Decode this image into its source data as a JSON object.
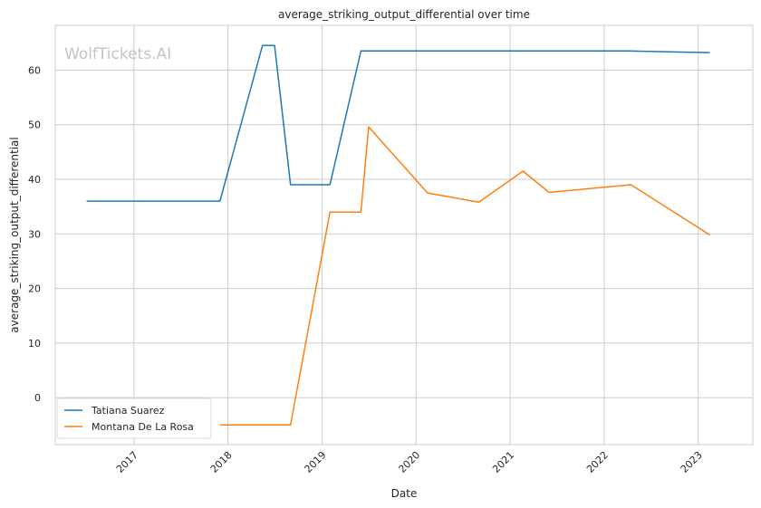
{
  "chart_data": {
    "type": "line",
    "title": "average_striking_output_differential over time",
    "xlabel": "Date",
    "ylabel": "average_striking_output_differential",
    "watermark": "WolfTickets.AI",
    "xlim": [
      "2016-03-01",
      "2023-08-01"
    ],
    "ylim": [
      -8.6,
      68.2
    ],
    "x_ticks": [
      "2017",
      "2018",
      "2019",
      "2020",
      "2021",
      "2022",
      "2023"
    ],
    "y_ticks": [
      0,
      10,
      20,
      30,
      40,
      50,
      60
    ],
    "grid": true,
    "legend_position": "lower-left",
    "series": [
      {
        "name": "Tatiana Suarez",
        "color": "#1f77b4",
        "points": [
          {
            "x": "2016-07-01",
            "y": 36
          },
          {
            "x": "2017-12-01",
            "y": 36
          },
          {
            "x": "2018-05-15",
            "y": 64.5
          },
          {
            "x": "2018-07-01",
            "y": 64.5
          },
          {
            "x": "2018-09-01",
            "y": 39
          },
          {
            "x": "2019-02-01",
            "y": 39
          },
          {
            "x": "2019-06-01",
            "y": 63.5
          },
          {
            "x": "2022-04-01",
            "y": 63.5
          },
          {
            "x": "2023-02-15",
            "y": 63.2
          }
        ]
      },
      {
        "name": "Montana De La Rosa",
        "color": "#ff7f0e",
        "points": [
          {
            "x": "2017-12-01",
            "y": -5
          },
          {
            "x": "2018-09-01",
            "y": -5
          },
          {
            "x": "2019-02-01",
            "y": 34
          },
          {
            "x": "2019-06-01",
            "y": 34
          },
          {
            "x": "2019-07-01",
            "y": 49.6
          },
          {
            "x": "2020-02-15",
            "y": 37.5
          },
          {
            "x": "2020-09-01",
            "y": 35.8
          },
          {
            "x": "2021-02-20",
            "y": 41.5
          },
          {
            "x": "2021-06-01",
            "y": 37.6
          },
          {
            "x": "2022-04-15",
            "y": 39
          },
          {
            "x": "2023-02-15",
            "y": 29.8
          }
        ]
      }
    ]
  }
}
